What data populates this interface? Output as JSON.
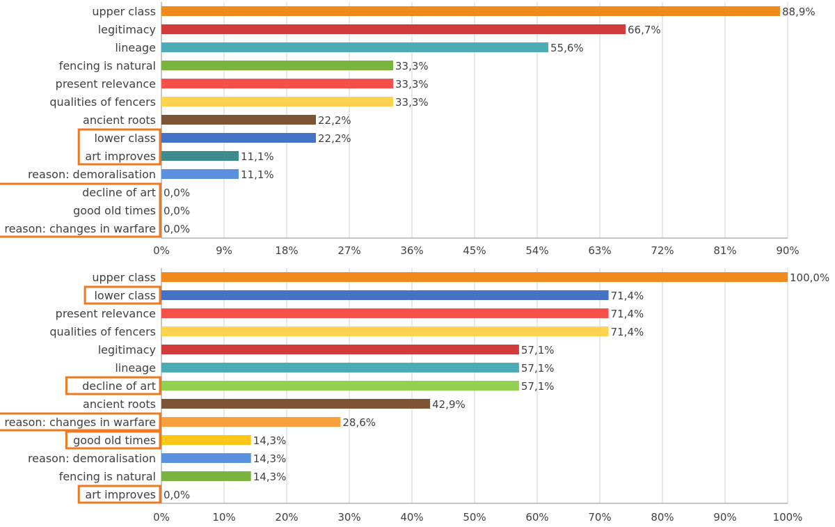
{
  "chart_data": [
    {
      "type": "bar",
      "orientation": "horizontal",
      "xlim": [
        0,
        90
      ],
      "ticks": [
        "0%",
        "9%",
        "18%",
        "27%",
        "36%",
        "45%",
        "54%",
        "63%",
        "72%",
        "81%",
        "90%"
      ],
      "grid": true,
      "categories": [
        "upper class",
        "legitimacy",
        "lineage",
        "fencing is natural",
        "present relevance",
        "qualities of fencers",
        "ancient roots",
        "lower class",
        "art improves",
        "reason: demoralisation",
        "decline of art",
        "good old times",
        "reason: changes in warfare"
      ],
      "values": [
        88.9,
        66.7,
        55.6,
        33.3,
        33.3,
        33.3,
        22.2,
        22.2,
        11.1,
        11.1,
        0.0,
        0.0,
        0.0
      ],
      "value_labels": [
        "88,9%",
        "66,7%",
        "55,6%",
        "33,3%",
        "33,3%",
        "33,3%",
        "22,2%",
        "22,2%",
        "11,1%",
        "11,1%",
        "0,0%",
        "0,0%",
        "0,0%"
      ],
      "colors": [
        "#f08a1c",
        "#d13b3b",
        "#4bacb6",
        "#7ab33d",
        "#f5504a",
        "#fdd24e",
        "#7d5434",
        "#4472c4",
        "#3d8c8c",
        "#5b8fe0",
        "#f08a1c",
        "#f08a1c",
        "#f08a1c"
      ],
      "highlight_groups": [
        [
          "lower class",
          "art improves"
        ],
        [
          "decline of art",
          "good old times",
          "reason: changes in warfare"
        ]
      ],
      "highlight_color": "#f07820"
    },
    {
      "type": "bar",
      "orientation": "horizontal",
      "xlim": [
        0,
        100
      ],
      "ticks": [
        "0%",
        "10%",
        "20%",
        "30%",
        "40%",
        "50%",
        "60%",
        "70%",
        "80%",
        "90%",
        "100%"
      ],
      "grid": true,
      "categories": [
        "upper class",
        "lower class",
        "present relevance",
        "qualities of fencers",
        "legitimacy",
        "lineage",
        "decline of art",
        "ancient roots",
        "reason: changes in warfare",
        "good old times",
        "reason: demoralisation",
        "fencing is natural",
        "art improves"
      ],
      "values": [
        100.0,
        71.4,
        71.4,
        71.4,
        57.1,
        57.1,
        57.1,
        42.9,
        28.6,
        14.3,
        14.3,
        14.3,
        0.0
      ],
      "value_labels": [
        "100,0%",
        "71,4%",
        "71,4%",
        "71,4%",
        "57,1%",
        "57,1%",
        "57,1%",
        "42,9%",
        "28,6%",
        "14,3%",
        "14,3%",
        "14,3%",
        "0,0%"
      ],
      "colors": [
        "#f08a1c",
        "#4472c4",
        "#f5504a",
        "#fdd24e",
        "#d13b3b",
        "#4bacb6",
        "#92d050",
        "#7d5434",
        "#f9a03f",
        "#ffc517",
        "#5b8fe0",
        "#7ab33d",
        "#3d8c8c"
      ],
      "highlight_groups": [
        [
          "lower class"
        ],
        [
          "decline of art"
        ],
        [
          "reason: changes in warfare"
        ],
        [
          "good old times"
        ],
        [
          "art improves"
        ]
      ],
      "highlight_color": "#f07820"
    }
  ]
}
